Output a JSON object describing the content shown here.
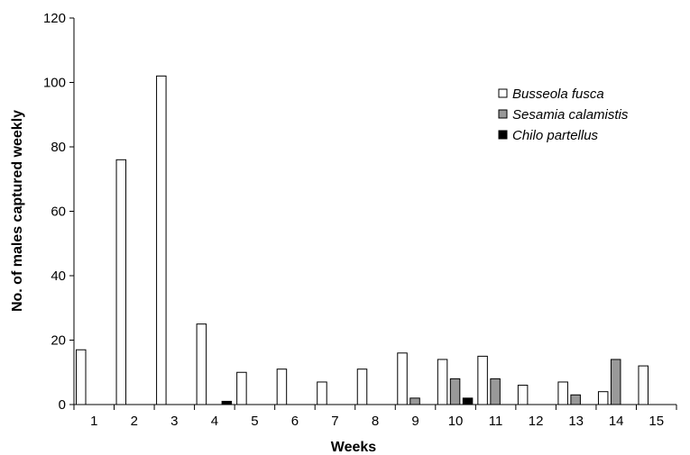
{
  "chart_data": {
    "type": "bar",
    "title": "",
    "xlabel": "Weeks",
    "ylabel": "No. of males captured weekly",
    "ylim": [
      0,
      120
    ],
    "yticks": [
      0,
      20,
      40,
      60,
      80,
      100,
      120
    ],
    "categories": [
      "1",
      "2",
      "3",
      "4",
      "5",
      "6",
      "7",
      "8",
      "9",
      "10",
      "11",
      "12",
      "13",
      "14",
      "15"
    ],
    "grid": false,
    "legend_position": "top-right",
    "series": [
      {
        "name": "Busseola fusca",
        "color": "#ffffff",
        "values": [
          17,
          76,
          102,
          25,
          10,
          11,
          7,
          11,
          16,
          14,
          15,
          6,
          7,
          4,
          12
        ]
      },
      {
        "name": "Sesamia calamistis",
        "color": "#999999",
        "values": [
          0,
          0,
          0,
          0,
          0,
          0,
          0,
          0,
          2,
          8,
          8,
          0,
          3,
          14,
          0
        ]
      },
      {
        "name": "Chilo partellus",
        "color": "#000000",
        "values": [
          0,
          0,
          0,
          1,
          0,
          0,
          0,
          0,
          0,
          2,
          0,
          0,
          0,
          0,
          0
        ]
      }
    ]
  }
}
